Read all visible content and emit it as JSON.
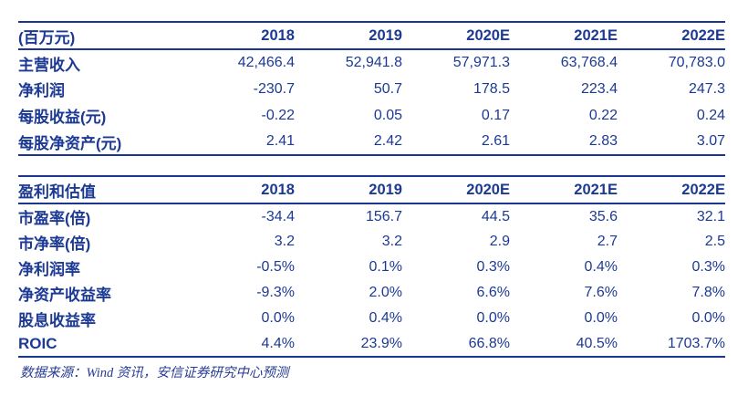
{
  "colors": {
    "accent_navy": "#1c3a94",
    "rule_line": "#1a3690"
  },
  "table1": {
    "unit_header": "(百万元)",
    "columns": [
      "2018",
      "2019",
      "2020E",
      "2021E",
      "2022E"
    ],
    "rows": [
      {
        "label": "主营收入",
        "values": [
          "42,466.4",
          "52,941.8",
          "57,971.3",
          "63,768.4",
          "70,783.0"
        ]
      },
      {
        "label": "净利润",
        "values": [
          "-230.7",
          "50.7",
          "178.5",
          "223.4",
          "247.3"
        ]
      },
      {
        "label": "每股收益(元)",
        "values": [
          "-0.22",
          "0.05",
          "0.17",
          "0.22",
          "0.24"
        ]
      },
      {
        "label": "每股净资产(元)",
        "values": [
          "2.41",
          "2.42",
          "2.61",
          "2.83",
          "3.07"
        ]
      }
    ]
  },
  "table2": {
    "header": "盈利和估值",
    "columns": [
      "2018",
      "2019",
      "2020E",
      "2021E",
      "2022E"
    ],
    "rows": [
      {
        "label": "市盈率(倍)",
        "values": [
          "-34.4",
          "156.7",
          "44.5",
          "35.6",
          "32.1"
        ]
      },
      {
        "label": "市净率(倍)",
        "values": [
          "3.2",
          "3.2",
          "2.9",
          "2.7",
          "2.5"
        ]
      },
      {
        "label": "净利润率",
        "values": [
          "-0.5%",
          "0.1%",
          "0.3%",
          "0.4%",
          "0.3%"
        ]
      },
      {
        "label": "净资产收益率",
        "values": [
          "-9.3%",
          "2.0%",
          "6.6%",
          "7.6%",
          "7.8%"
        ]
      },
      {
        "label": "股息收益率",
        "values": [
          "0.0%",
          "0.4%",
          "0.0%",
          "0.0%",
          "0.0%"
        ]
      },
      {
        "label": "ROIC",
        "values": [
          "4.4%",
          "23.9%",
          "66.8%",
          "40.5%",
          "1703.7%"
        ]
      }
    ]
  },
  "footer": {
    "source_note": "数据来源：Wind 资讯，安信证券研究中心预测"
  }
}
